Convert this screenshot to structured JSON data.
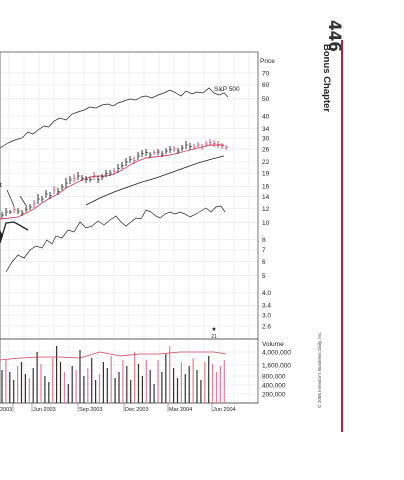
{
  "page": {
    "page_number": "446",
    "chapter_title": "Bonus Chapter",
    "copyright": "© 2006 Investor's Business Daily, Inc.",
    "accent_color": "#b5203c"
  },
  "chart_data": {
    "type": "line",
    "price_axis_title": "Price",
    "volume_axis_title": "Volume",
    "sp500_label": "S&P 500",
    "annotation_left": "t",
    "marker_label": "21",
    "y_ticks": [
      "70",
      "60",
      "50",
      "40",
      "34",
      "30",
      "26",
      "22",
      "19",
      "16",
      "14",
      "12",
      "10",
      "8",
      "7",
      "6",
      "5",
      "4.0",
      "3.4",
      "3.0",
      "2.6"
    ],
    "volume_ticks": [
      "4,000,000",
      "1,600,000",
      "800,000",
      "400,000",
      "200,000"
    ],
    "x_labels": [
      "2003",
      "Jun 2003",
      "Sep 2003",
      "Dec 2003",
      "Mar 2004",
      "Jun 2004"
    ],
    "ylim": [
      2.5,
      75
    ],
    "log_scale": true,
    "grid": true,
    "series": [
      {
        "name": "S&P 500",
        "color": "#222222"
      },
      {
        "name": "",
        "color": "#222222"
      },
      {
        "name": "",
        "color": "#d04060"
      }
    ]
  }
}
